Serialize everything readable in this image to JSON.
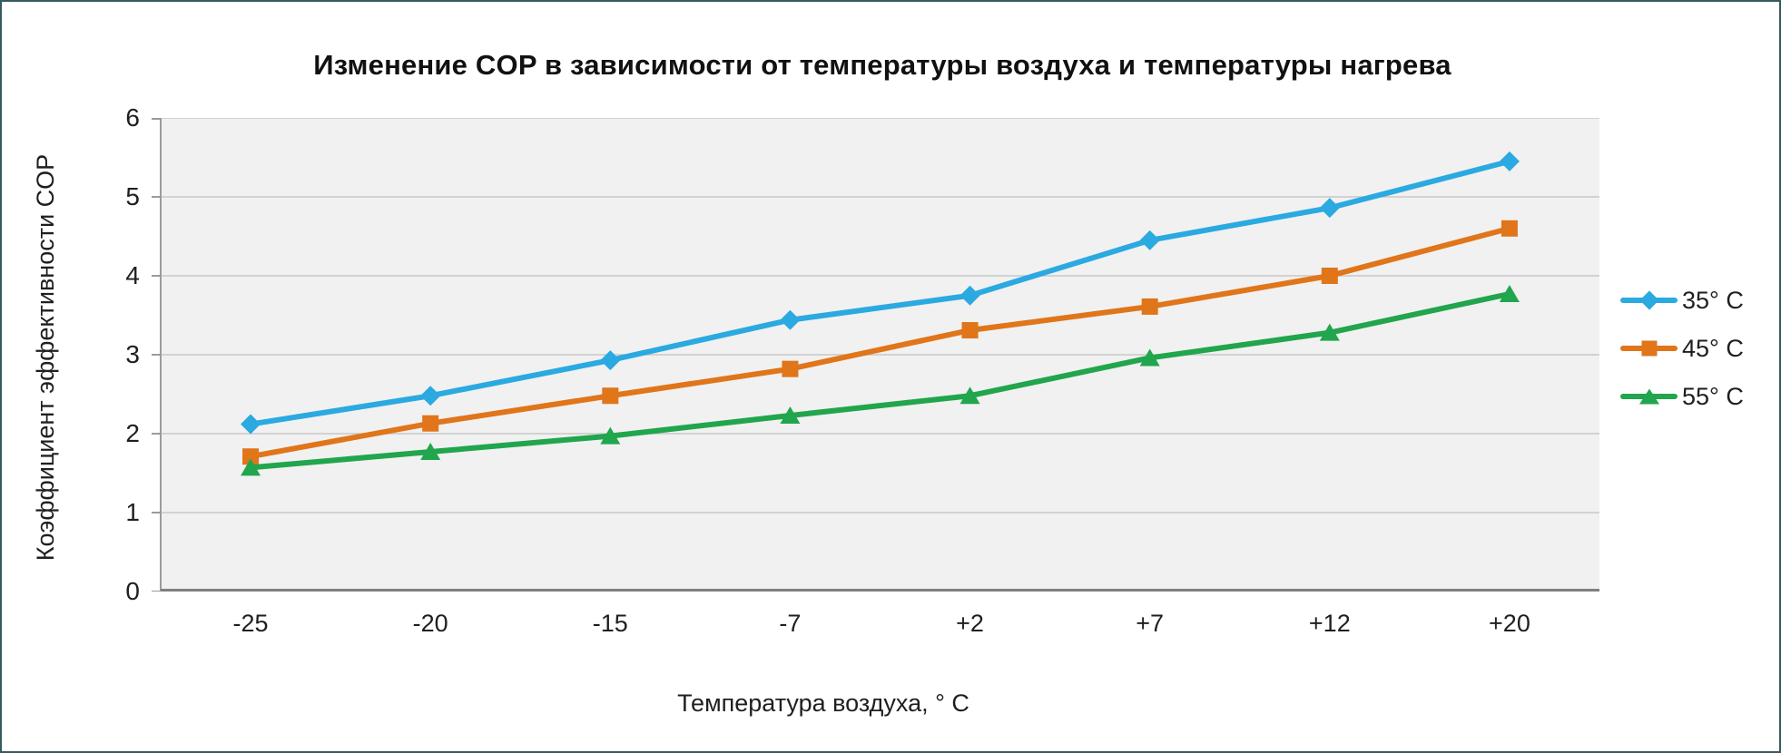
{
  "page": {
    "border_color": "#355A60",
    "background": "#FFFFFF"
  },
  "chart_data": {
    "type": "line",
    "title": "Изменение COP в зависимости от температуры воздуха и температуры нагрева",
    "xlabel": "Температура воздуха, ° C",
    "ylabel": "Коэффициент эффективности COP",
    "categories": [
      "-25",
      "-20",
      "-15",
      "-7",
      "+2",
      "+7",
      "+12",
      "+20"
    ],
    "series": [
      {
        "name": "35° C",
        "marker": "diamond",
        "color": "#2BA9E1",
        "values": [
          2.12,
          2.48,
          2.93,
          3.44,
          3.75,
          4.45,
          4.86,
          5.45
        ]
      },
      {
        "name": "45° C",
        "marker": "square",
        "color": "#E0751A",
        "values": [
          1.71,
          2.13,
          2.48,
          2.82,
          3.31,
          3.61,
          4.0,
          4.6
        ]
      },
      {
        "name": "55° C",
        "marker": "triangle",
        "color": "#21A54D",
        "values": [
          1.57,
          1.77,
          1.97,
          2.23,
          2.48,
          2.96,
          3.28,
          3.77
        ]
      }
    ],
    "ylim": [
      0,
      6
    ],
    "ytick_step": 1,
    "grid": true,
    "legend_position": "right",
    "plot_bg": "#F1F1F1",
    "gridline_color": "#C8C8C8",
    "axis_color": "#7F7F7F",
    "minor_axis_color": "#9B9B9B"
  }
}
